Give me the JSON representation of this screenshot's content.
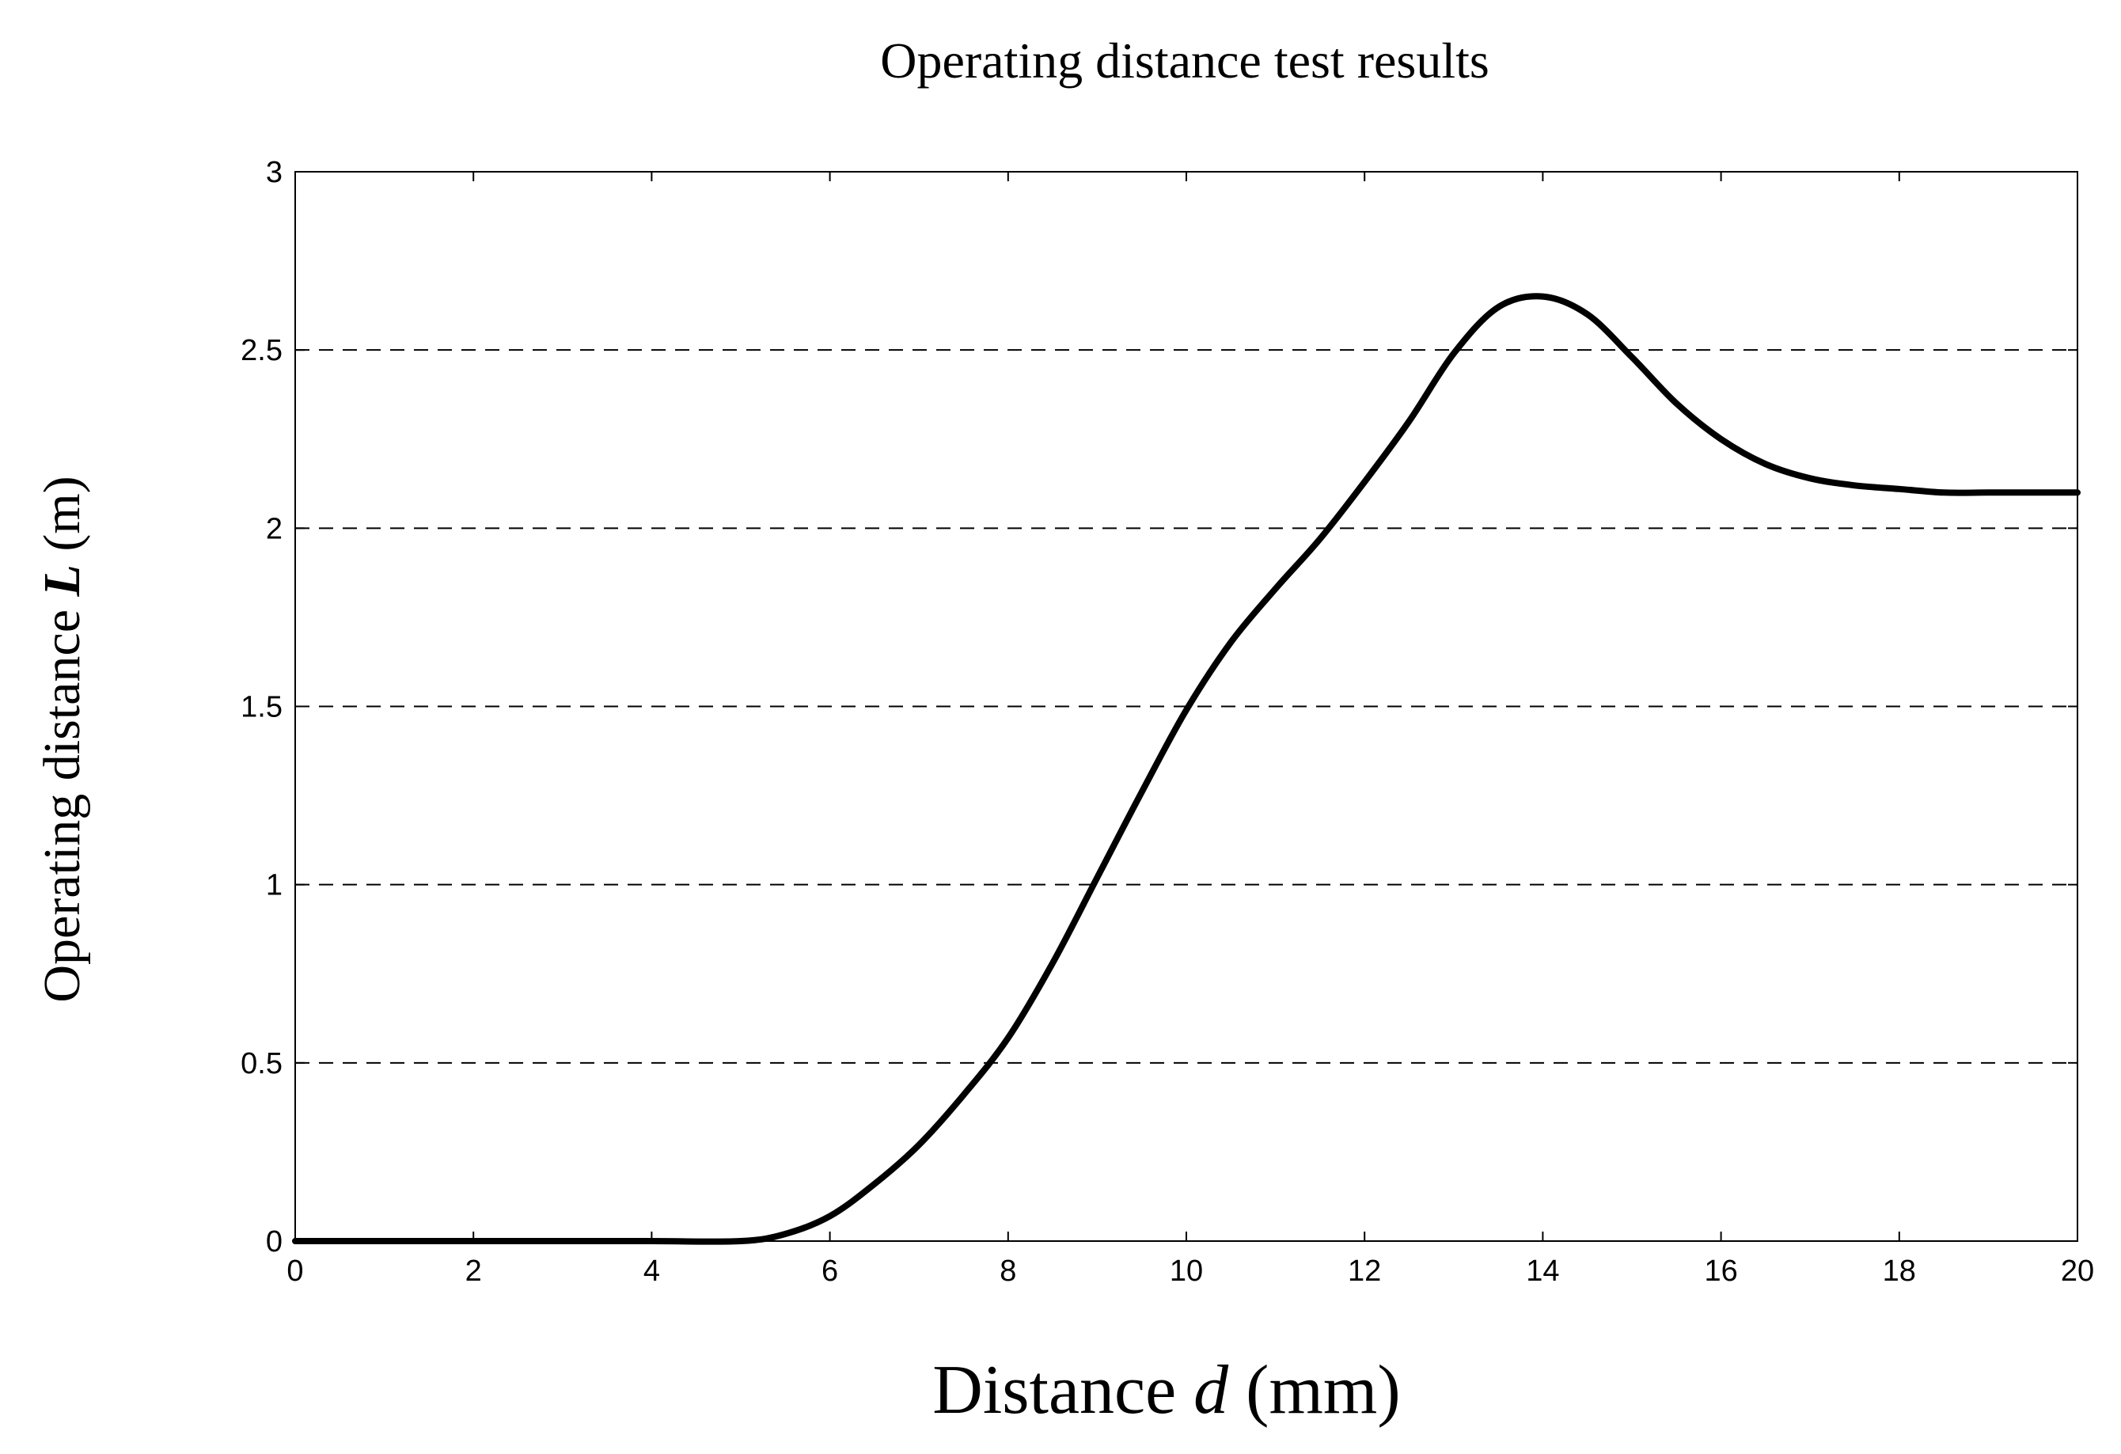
{
  "chart_data": {
    "type": "line",
    "title": "Operating distance test results",
    "xlabel": {
      "prefix": "Distance ",
      "var": "d",
      "suffix": " (mm)"
    },
    "ylabel": {
      "prefix": "Operating distance ",
      "var": "L",
      "suffix": " (m)"
    },
    "xlim": [
      0,
      20
    ],
    "ylim": [
      0,
      3
    ],
    "xticks": [
      0,
      2,
      4,
      6,
      8,
      10,
      12,
      14,
      16,
      18,
      20
    ],
    "yticks": [
      0,
      0.5,
      1,
      1.5,
      2,
      2.5,
      3
    ],
    "grid": {
      "axis": "y",
      "style": "dashed"
    },
    "series": [
      {
        "color": "#000000",
        "x": [
          0,
          1,
          2,
          3,
          4,
          5,
          5.5,
          6,
          6.5,
          7,
          7.5,
          8,
          8.5,
          9,
          9.5,
          10,
          10.5,
          11,
          11.5,
          12,
          12.5,
          13,
          13.5,
          14,
          14.5,
          15,
          15.5,
          16,
          16.5,
          17,
          17.5,
          18,
          18.5,
          19,
          19.5,
          20
        ],
        "y": [
          0,
          0,
          0,
          0,
          0,
          0,
          0.02,
          0.07,
          0.16,
          0.27,
          0.41,
          0.57,
          0.78,
          1.02,
          1.26,
          1.49,
          1.68,
          1.83,
          1.97,
          2.13,
          2.3,
          2.49,
          2.62,
          2.65,
          2.6,
          2.48,
          2.35,
          2.25,
          2.18,
          2.14,
          2.12,
          2.11,
          2.1,
          2.1,
          2.1,
          2.1
        ]
      }
    ]
  }
}
